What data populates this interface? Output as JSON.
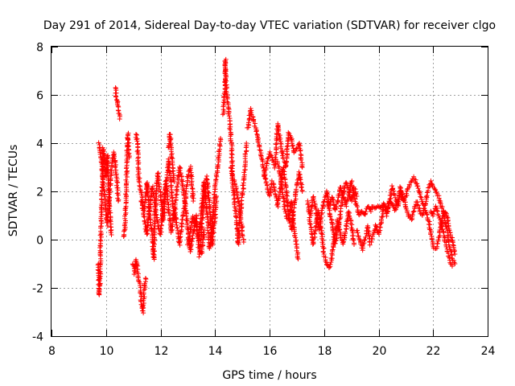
{
  "chart_data": {
    "type": "scatter",
    "title": "Day 291 of 2014, Sidereal Day-to-day VTEC variation (SDTVAR) for receiver clgo",
    "xlabel": "GPS time / hours",
    "ylabel": "SDTVAR / TECUs",
    "xlim": [
      8,
      24
    ],
    "ylim": [
      -4,
      8
    ],
    "xticks": [
      8,
      10,
      12,
      14,
      16,
      18,
      20,
      22,
      24
    ],
    "yticks": [
      -4,
      -2,
      0,
      2,
      4,
      6,
      8
    ],
    "grid": true,
    "marker": "+",
    "color": "#ff0000",
    "tracks": [
      [
        [
          9.72,
          -1.0
        ],
        [
          9.75,
          -2.3
        ],
        [
          9.78,
          -1.8
        ],
        [
          9.8,
          -0.2
        ],
        [
          9.83,
          0.8
        ],
        [
          9.86,
          2.0
        ],
        [
          9.9,
          3.8
        ],
        [
          9.95,
          3.2
        ],
        [
          10.0,
          2.6
        ],
        [
          10.05,
          3.5
        ],
        [
          10.1,
          2.0
        ],
        [
          10.15,
          1.0
        ],
        [
          10.2,
          0.2
        ]
      ],
      [
        [
          9.75,
          4.0
        ],
        [
          9.8,
          3.6
        ],
        [
          9.9,
          2.4
        ],
        [
          10.0,
          1.2
        ],
        [
          10.05,
          0.6
        ],
        [
          10.1,
          1.5
        ],
        [
          10.2,
          3.0
        ],
        [
          10.3,
          3.6
        ],
        [
          10.4,
          2.4
        ],
        [
          10.45,
          1.6
        ]
      ],
      [
        [
          10.35,
          6.3
        ],
        [
          10.38,
          5.9
        ],
        [
          10.42,
          5.7
        ],
        [
          10.46,
          5.4
        ],
        [
          10.5,
          5.0
        ]
      ],
      [
        [
          10.65,
          0.1
        ],
        [
          10.7,
          0.6
        ],
        [
          10.75,
          2.5
        ],
        [
          10.8,
          4.4
        ],
        [
          10.85,
          3.4
        ]
      ],
      [
        [
          11.0,
          -1.0
        ],
        [
          11.05,
          -1.4
        ],
        [
          11.1,
          -0.8
        ],
        [
          11.15,
          -1.2
        ],
        [
          11.2,
          -1.6
        ],
        [
          11.25,
          -2.0
        ],
        [
          11.3,
          -2.6
        ],
        [
          11.35,
          -3.0
        ],
        [
          11.4,
          -2.2
        ],
        [
          11.45,
          -1.6
        ]
      ],
      [
        [
          11.1,
          4.4
        ],
        [
          11.15,
          4.0
        ],
        [
          11.2,
          2.6
        ],
        [
          11.3,
          1.8
        ],
        [
          11.4,
          1.2
        ],
        [
          11.5,
          2.4
        ],
        [
          11.6,
          1.0
        ],
        [
          11.7,
          0.3
        ],
        [
          11.75,
          -0.8
        ],
        [
          11.8,
          1.2
        ],
        [
          11.9,
          2.8
        ],
        [
          12.0,
          1.8
        ],
        [
          12.1,
          0.8
        ],
        [
          12.2,
          2.2
        ],
        [
          12.3,
          3.3
        ],
        [
          12.4,
          2.0
        ],
        [
          12.5,
          0.8
        ],
        [
          12.6,
          2.1
        ],
        [
          12.7,
          3.0
        ],
        [
          12.8,
          2.4
        ],
        [
          12.9,
          1.6
        ],
        [
          13.0,
          2.6
        ],
        [
          13.1,
          3.0
        ],
        [
          13.2,
          1.6
        ]
      ],
      [
        [
          11.3,
          1.6
        ],
        [
          11.4,
          0.9
        ],
        [
          11.5,
          0.2
        ],
        [
          11.6,
          1.3
        ],
        [
          11.7,
          2.2
        ],
        [
          11.8,
          1.5
        ],
        [
          11.9,
          0.6
        ],
        [
          12.0,
          0.2
        ],
        [
          12.1,
          1.4
        ],
        [
          12.2,
          2.4
        ],
        [
          12.3,
          1.2
        ],
        [
          12.4,
          0.3
        ],
        [
          12.5,
          1.3
        ],
        [
          12.6,
          0.6
        ],
        [
          12.7,
          -0.2
        ],
        [
          12.8,
          0.8
        ],
        [
          12.9,
          1.6
        ],
        [
          13.0,
          0.4
        ],
        [
          13.1,
          -0.5
        ],
        [
          13.2,
          0.3
        ],
        [
          13.3,
          1.0
        ],
        [
          13.4,
          -0.3
        ],
        [
          13.5,
          -0.6
        ],
        [
          13.6,
          0.4
        ]
      ],
      [
        [
          12.3,
          3.8
        ],
        [
          12.35,
          4.4
        ],
        [
          12.4,
          3.6
        ],
        [
          12.45,
          3.0
        ],
        [
          12.5,
          2.4
        ]
      ],
      [
        [
          13.0,
          -0.2
        ],
        [
          13.1,
          0.4
        ],
        [
          13.2,
          1.0
        ],
        [
          13.3,
          0.6
        ],
        [
          13.4,
          0.0
        ],
        [
          13.5,
          1.2
        ],
        [
          13.6,
          2.4
        ],
        [
          13.7,
          1.2
        ],
        [
          13.8,
          -0.4
        ],
        [
          13.9,
          0.6
        ],
        [
          14.0,
          2.2
        ],
        [
          14.1,
          3.0
        ],
        [
          14.2,
          4.2
        ]
      ],
      [
        [
          13.4,
          -0.7
        ],
        [
          13.5,
          0.2
        ],
        [
          13.6,
          1.8
        ],
        [
          13.7,
          2.6
        ],
        [
          13.8,
          1.4
        ],
        [
          13.9,
          -0.2
        ],
        [
          14.0,
          1.0
        ],
        [
          14.05,
          1.8
        ]
      ],
      [
        [
          14.3,
          5.2
        ],
        [
          14.35,
          6.0
        ],
        [
          14.38,
          7.5
        ],
        [
          14.4,
          6.6
        ],
        [
          14.45,
          5.8
        ],
        [
          14.5,
          5.4
        ],
        [
          14.55,
          4.6
        ],
        [
          14.6,
          4.0
        ],
        [
          14.65,
          2.6
        ]
      ],
      [
        [
          14.6,
          3.0
        ],
        [
          14.7,
          1.8
        ],
        [
          14.8,
          0.6
        ],
        [
          14.85,
          -0.2
        ],
        [
          14.9,
          0.8
        ],
        [
          15.0,
          1.8
        ],
        [
          15.1,
          3.0
        ],
        [
          15.15,
          4.0
        ]
      ],
      [
        [
          14.7,
          2.5
        ],
        [
          14.8,
          2.0
        ],
        [
          14.9,
          1.2
        ],
        [
          15.0,
          0.4
        ],
        [
          15.05,
          -0.1
        ]
      ],
      [
        [
          15.2,
          4.6
        ],
        [
          15.3,
          5.4
        ],
        [
          15.4,
          5.0
        ],
        [
          15.5,
          4.6
        ],
        [
          15.6,
          4.0
        ],
        [
          15.7,
          3.4
        ],
        [
          15.8,
          2.8
        ],
        [
          15.9,
          2.2
        ],
        [
          16.0,
          1.8
        ],
        [
          16.1,
          2.4
        ],
        [
          16.2,
          2.0
        ],
        [
          16.3,
          1.4
        ],
        [
          16.4,
          2.2
        ],
        [
          16.5,
          3.0
        ],
        [
          16.6,
          2.2
        ],
        [
          16.7,
          1.0
        ],
        [
          16.8,
          0.4
        ],
        [
          16.9,
          1.2
        ],
        [
          17.0,
          2.2
        ],
        [
          17.1,
          2.8
        ],
        [
          17.2,
          2.0
        ]
      ],
      [
        [
          15.8,
          2.6
        ],
        [
          15.9,
          3.2
        ],
        [
          16.0,
          3.6
        ],
        [
          16.1,
          3.4
        ],
        [
          16.2,
          3.0
        ],
        [
          16.3,
          4.8
        ],
        [
          16.4,
          4.0
        ],
        [
          16.5,
          3.4
        ],
        [
          16.6,
          3.0
        ],
        [
          16.7,
          4.4
        ],
        [
          16.8,
          4.2
        ],
        [
          16.9,
          3.6
        ],
        [
          17.0,
          3.8
        ],
        [
          17.1,
          4.0
        ],
        [
          17.2,
          3.0
        ]
      ],
      [
        [
          16.3,
          3.2
        ],
        [
          16.4,
          2.6
        ],
        [
          16.5,
          1.8
        ],
        [
          16.6,
          1.0
        ],
        [
          16.7,
          0.8
        ],
        [
          16.8,
          1.6
        ],
        [
          16.9,
          0.4
        ],
        [
          17.0,
          -0.3
        ],
        [
          17.05,
          -0.8
        ]
      ],
      [
        [
          17.4,
          1.6
        ],
        [
          17.5,
          0.6
        ],
        [
          17.6,
          -0.2
        ],
        [
          17.7,
          0.6
        ],
        [
          17.8,
          1.2
        ],
        [
          17.9,
          0.4
        ],
        [
          18.0,
          -0.6
        ],
        [
          18.1,
          -1.0
        ],
        [
          18.2,
          -1.2
        ],
        [
          18.3,
          -0.6
        ],
        [
          18.4,
          0.2
        ],
        [
          18.5,
          0.8
        ],
        [
          18.6,
          0.2
        ],
        [
          18.7,
          -0.2
        ],
        [
          18.8,
          0.4
        ],
        [
          18.9,
          1.2
        ],
        [
          19.0,
          0.6
        ],
        [
          19.1,
          -0.2
        ]
      ],
      [
        [
          17.5,
          1.0
        ],
        [
          17.6,
          1.8
        ],
        [
          17.7,
          1.2
        ],
        [
          17.8,
          0.4
        ],
        [
          17.9,
          1.0
        ],
        [
          18.0,
          1.6
        ],
        [
          18.1,
          2.0
        ],
        [
          18.2,
          1.4
        ],
        [
          18.3,
          1.8
        ],
        [
          18.4,
          1.2
        ],
        [
          18.5,
          1.6
        ],
        [
          18.6,
          2.2
        ],
        [
          18.7,
          1.8
        ],
        [
          18.8,
          1.4
        ],
        [
          18.9,
          1.8
        ],
        [
          19.0,
          2.4
        ],
        [
          19.1,
          1.8
        ],
        [
          19.2,
          1.4
        ],
        [
          19.3,
          1.0
        ],
        [
          19.4,
          1.2
        ],
        [
          19.5,
          1.0
        ],
        [
          19.6,
          1.4
        ],
        [
          19.7,
          1.2
        ],
        [
          19.8,
          1.4
        ],
        [
          19.9,
          1.3
        ],
        [
          20.0,
          1.4
        ],
        [
          20.1,
          1.3
        ],
        [
          20.2,
          1.5
        ],
        [
          20.3,
          1.2
        ],
        [
          20.4,
          1.6
        ],
        [
          20.5,
          1.5
        ],
        [
          20.6,
          1.2
        ],
        [
          20.7,
          1.6
        ],
        [
          20.8,
          2.0
        ],
        [
          20.9,
          1.6
        ],
        [
          21.0,
          1.8
        ],
        [
          21.1,
          2.2
        ],
        [
          21.2,
          2.4
        ],
        [
          21.3,
          2.6
        ],
        [
          21.4,
          2.3
        ],
        [
          21.5,
          2.0
        ],
        [
          21.6,
          1.6
        ],
        [
          21.7,
          1.2
        ],
        [
          21.8,
          1.0
        ],
        [
          21.9,
          0.4
        ],
        [
          22.0,
          -0.3
        ],
        [
          22.1,
          -0.4
        ],
        [
          22.2,
          0.0
        ],
        [
          22.3,
          0.6
        ],
        [
          22.4,
          1.2
        ],
        [
          22.5,
          1.0
        ],
        [
          22.6,
          0.4
        ],
        [
          22.7,
          0.0
        ],
        [
          22.8,
          -0.6
        ]
      ],
      [
        [
          18.1,
          1.6
        ],
        [
          18.2,
          1.2
        ],
        [
          18.3,
          0.6
        ],
        [
          18.4,
          -0.2
        ],
        [
          18.5,
          0.4
        ],
        [
          18.6,
          1.0
        ],
        [
          18.7,
          2.0
        ],
        [
          18.8,
          2.4
        ],
        [
          18.9,
          2.0
        ],
        [
          19.0,
          1.6
        ],
        [
          19.1,
          2.2
        ],
        [
          19.2,
          1.8
        ]
      ],
      [
        [
          19.2,
          0.4
        ],
        [
          19.3,
          0.0
        ],
        [
          19.4,
          -0.4
        ],
        [
          19.5,
          0.0
        ],
        [
          19.6,
          0.6
        ],
        [
          19.7,
          -0.2
        ],
        [
          19.8,
          0.2
        ],
        [
          19.9,
          0.6
        ],
        [
          20.0,
          0.2
        ],
        [
          20.1,
          0.8
        ],
        [
          20.2,
          1.4
        ],
        [
          20.3,
          1.0
        ],
        [
          20.4,
          1.6
        ],
        [
          20.5,
          2.2
        ],
        [
          20.6,
          1.8
        ],
        [
          20.7,
          1.4
        ],
        [
          20.8,
          2.2
        ],
        [
          20.9,
          1.8
        ],
        [
          21.0,
          1.4
        ],
        [
          21.1,
          1.0
        ],
        [
          21.2,
          0.8
        ],
        [
          21.3,
          1.2
        ],
        [
          21.4,
          1.6
        ],
        [
          21.5,
          1.2
        ],
        [
          21.6,
          1.0
        ],
        [
          21.7,
          1.4
        ],
        [
          21.8,
          2.0
        ],
        [
          21.9,
          2.4
        ],
        [
          22.0,
          2.2
        ],
        [
          22.1,
          2.0
        ],
        [
          22.2,
          1.8
        ],
        [
          22.3,
          1.4
        ],
        [
          22.4,
          1.0
        ],
        [
          22.5,
          0.4
        ],
        [
          22.6,
          -0.2
        ],
        [
          22.7,
          -0.8
        ],
        [
          22.8,
          -1.0
        ]
      ],
      [
        [
          21.9,
          1.2
        ],
        [
          22.0,
          1.0
        ],
        [
          22.1,
          1.4
        ],
        [
          22.2,
          1.0
        ],
        [
          22.3,
          0.6
        ],
        [
          22.4,
          0.2
        ],
        [
          22.5,
          -0.4
        ],
        [
          22.6,
          -0.8
        ],
        [
          22.7,
          -1.1
        ]
      ]
    ]
  }
}
